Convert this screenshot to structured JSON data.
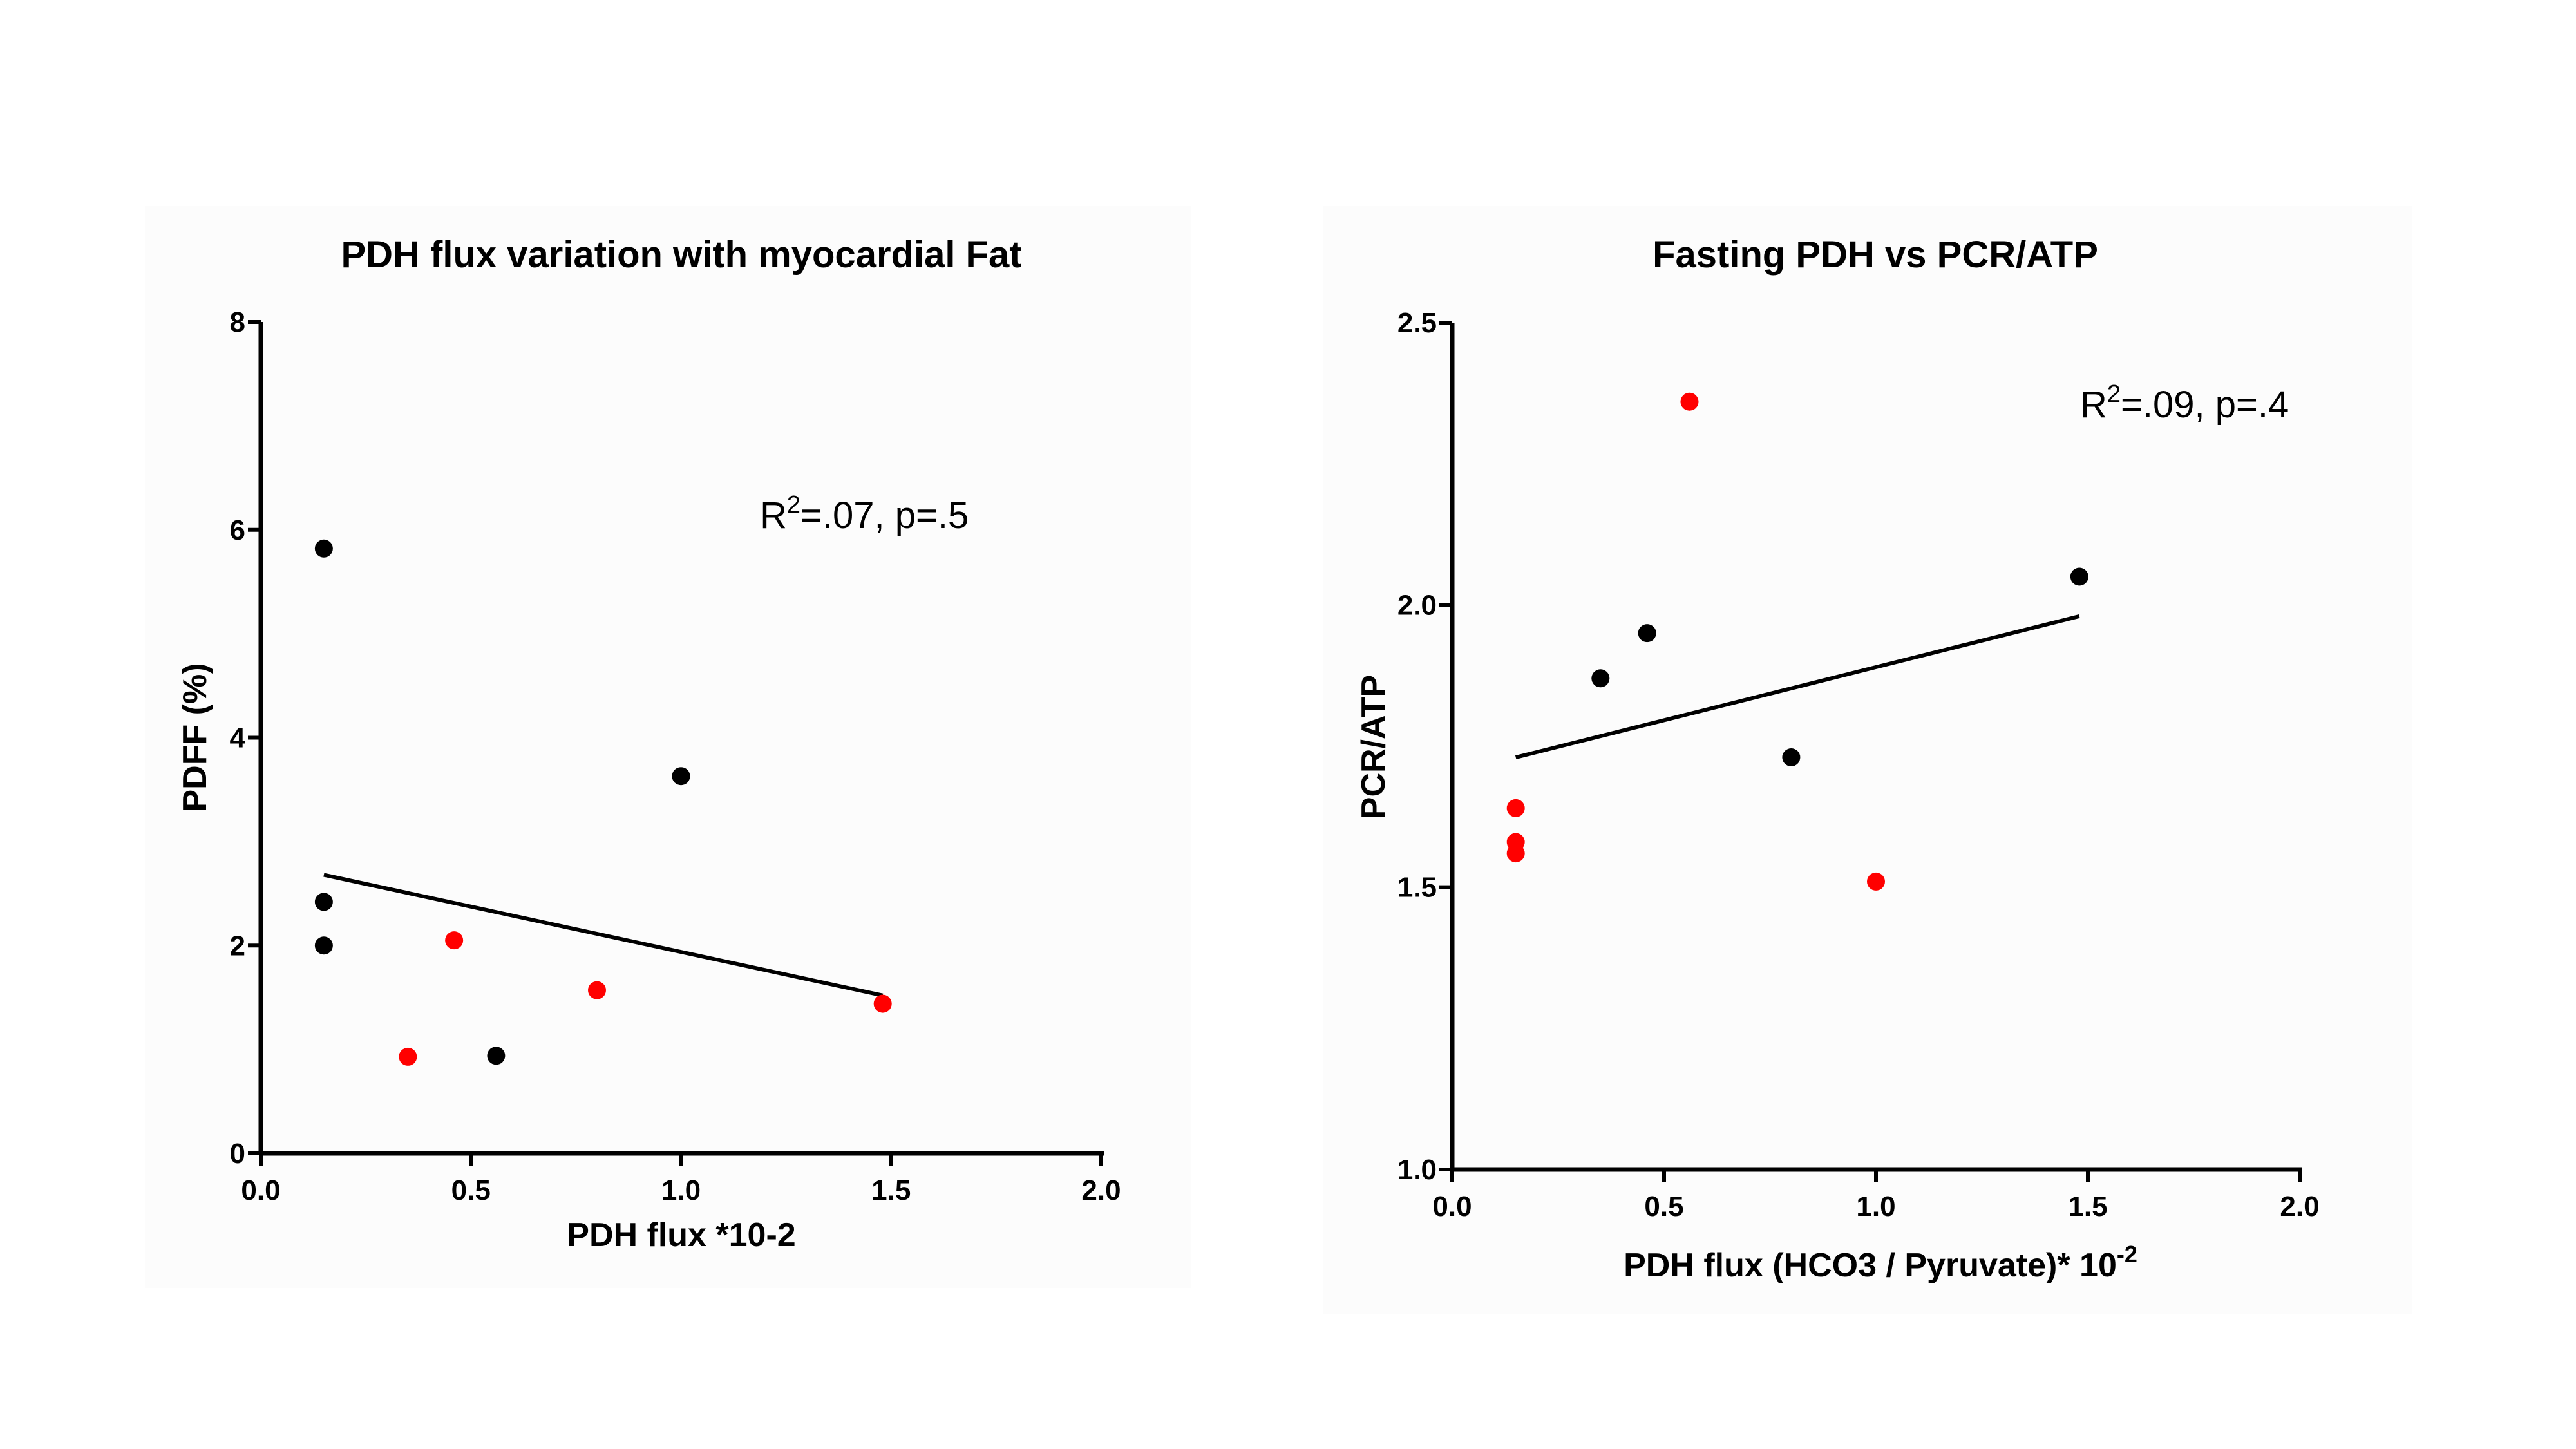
{
  "chart_data": [
    {
      "type": "scatter",
      "title": "PDH flux variation with myocardial Fat",
      "xlabel": "PDH flux *10-2",
      "ylabel": "PDFF (%)",
      "xlim": [
        0,
        2.0
      ],
      "ylim": [
        0,
        8
      ],
      "xticks": [
        "0.0",
        "0.5",
        "1.0",
        "1.5",
        "2.0"
      ],
      "yticks": [
        "0",
        "2",
        "4",
        "6",
        "8"
      ],
      "annotation": {
        "prefix": "R",
        "sup": "2",
        "suffix": "=.07, p=.5"
      },
      "series": [
        {
          "name": "black",
          "color": "#000000",
          "points": [
            [
              0.15,
              5.82
            ],
            [
              0.15,
              2.42
            ],
            [
              0.15,
              2.0
            ],
            [
              1.0,
              3.63
            ],
            [
              0.56,
              0.94
            ]
          ]
        },
        {
          "name": "red",
          "color": "#ff0000",
          "points": [
            [
              0.35,
              0.93
            ],
            [
              0.46,
              2.05
            ],
            [
              0.8,
              1.57
            ],
            [
              1.48,
              1.44
            ]
          ]
        }
      ],
      "fit_line": [
        [
          0.15,
          2.68
        ],
        [
          1.48,
          1.52
        ]
      ]
    },
    {
      "type": "scatter",
      "title": "Fasting PDH vs PCR/ATP",
      "xlabel": "PDH flux (HCO3 / Pyruvate)* 10",
      "xlabel_sup": "-2",
      "ylabel": "PCR/ATP",
      "xlim": [
        0,
        2.0
      ],
      "ylim": [
        1.0,
        2.5
      ],
      "xticks": [
        "0.0",
        "0.5",
        "1.0",
        "1.5",
        "2.0"
      ],
      "yticks": [
        "1.0",
        "1.5",
        "2.0",
        "2.5"
      ],
      "annotation": {
        "prefix": "R",
        "sup": "2",
        "suffix": "=.09, p=.4"
      },
      "series": [
        {
          "name": "black",
          "color": "#000000",
          "points": [
            [
              0.35,
              1.87
            ],
            [
              0.46,
              1.95
            ],
            [
              0.8,
              1.73
            ],
            [
              1.48,
              2.05
            ]
          ]
        },
        {
          "name": "red",
          "color": "#ff0000",
          "points": [
            [
              0.56,
              2.36
            ],
            [
              0.15,
              1.64
            ],
            [
              0.15,
              1.58
            ],
            [
              0.15,
              1.56
            ],
            [
              1.0,
              1.51
            ]
          ]
        }
      ],
      "fit_line": [
        [
          0.15,
          1.73
        ],
        [
          1.48,
          1.98
        ]
      ]
    }
  ]
}
